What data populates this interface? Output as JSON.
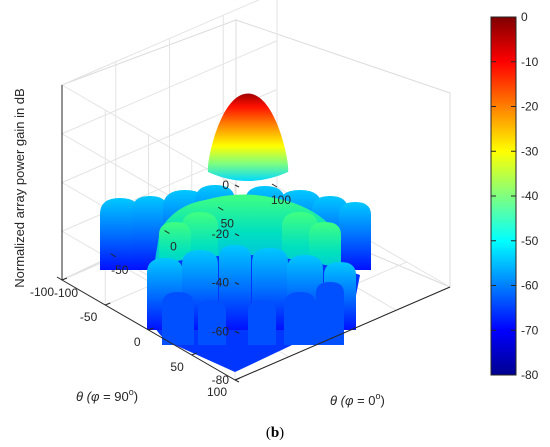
{
  "chart_data": {
    "type": "surface3d",
    "zlabel": "Normalized array power gain in dB",
    "xlabel_parts": [
      "θ (",
      "φ",
      " = 0",
      "o",
      ")"
    ],
    "ylabel_parts": [
      "θ (",
      "φ",
      " = 90",
      "o",
      ")"
    ],
    "x_ticks": [
      "-100",
      "-50",
      "0",
      "50",
      "100"
    ],
    "y_ticks": [
      "-100",
      "-50",
      "0",
      "50",
      "100"
    ],
    "z_ticks": [
      "-80",
      "-60",
      "-40",
      "-20",
      "0"
    ],
    "xlim": [
      -100,
      100
    ],
    "ylim": [
      -100,
      100
    ],
    "zlim": [
      -80,
      0
    ],
    "colorbar": {
      "ticks": [
        "0",
        "-10",
        "-20",
        "-30",
        "-40",
        "-50",
        "-60",
        "-70",
        "-80"
      ],
      "range": [
        -80,
        0
      ],
      "colormap": "jet"
    },
    "main_lobe": {
      "theta_x": 0,
      "theta_y": 0,
      "peak_db": 0
    },
    "grid": true
  },
  "caption": {
    "open": "(",
    "letter": "b",
    "close": ")"
  }
}
